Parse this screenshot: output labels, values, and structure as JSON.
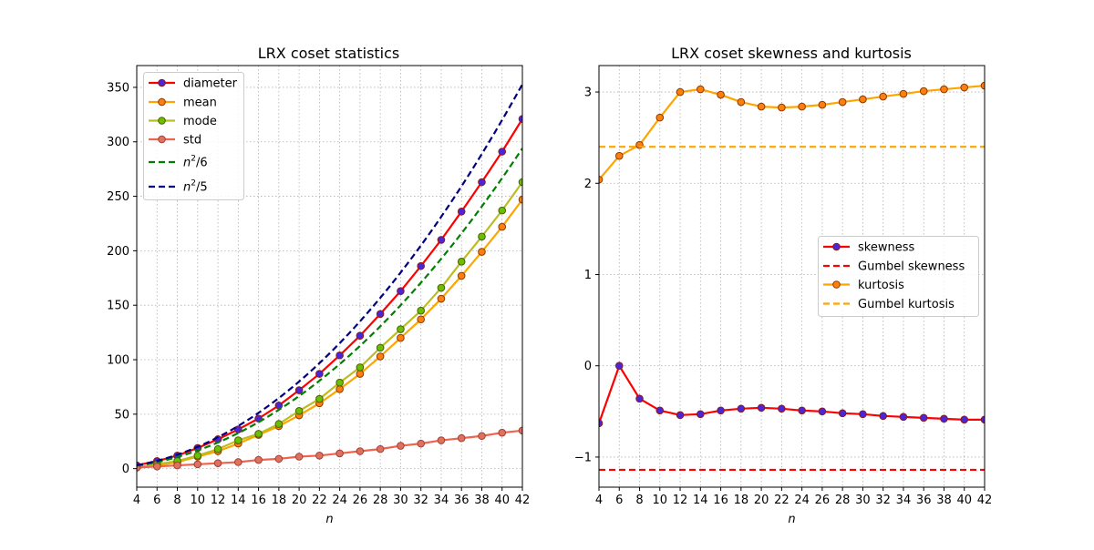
{
  "chart_data": [
    {
      "type": "line",
      "title": "LRX coset statistics",
      "xlabel": "n",
      "ylabel": "",
      "xlim": [
        4,
        42
      ],
      "ylim": [
        -17,
        370
      ],
      "xticks": [
        4,
        6,
        8,
        10,
        12,
        14,
        16,
        18,
        20,
        22,
        24,
        26,
        28,
        30,
        32,
        34,
        36,
        38,
        40,
        42
      ],
      "yticks": [
        0,
        50,
        100,
        150,
        200,
        250,
        300,
        350
      ],
      "grid": true,
      "legend_position": "upper-left",
      "x": [
        4,
        6,
        8,
        10,
        12,
        14,
        16,
        18,
        20,
        22,
        24,
        26,
        28,
        30,
        32,
        34,
        36,
        38,
        40,
        42
      ],
      "series": [
        {
          "name": "diameter",
          "label": "diameter",
          "color": "#ff0000",
          "marker_face": "#4b25d8",
          "marker_edge": "#8b1a1a",
          "style": "line-marker",
          "values": [
            3,
            7,
            12,
            19,
            27,
            36,
            46,
            58,
            72,
            87,
            104,
            122,
            142,
            163,
            186,
            210,
            236,
            263,
            291,
            321
          ]
        },
        {
          "name": "mean",
          "label": "mean",
          "color": "#ffa500",
          "marker_face": "#ff7f0e",
          "marker_edge": "#8b3a00",
          "style": "line-marker",
          "values": [
            1,
            3,
            6,
            11,
            16,
            23,
            31,
            39,
            49,
            60,
            73,
            87,
            103,
            120,
            137,
            156,
            177,
            199,
            222,
            247
          ]
        },
        {
          "name": "mode",
          "label": "mode",
          "color": "#bcbd22",
          "marker_face": "#6abf00",
          "marker_edge": "#4a5e00",
          "style": "line-marker",
          "values": [
            1,
            4,
            7,
            12,
            18,
            26,
            32,
            41,
            53,
            64,
            79,
            93,
            111,
            128,
            145,
            166,
            190,
            213,
            237,
            263
          ]
        },
        {
          "name": "std",
          "label": "std",
          "color": "#f0644f",
          "marker_face": "#e07060",
          "marker_edge": "#a04030",
          "style": "line-marker",
          "values": [
            1,
            2,
            3,
            4,
            5,
            6,
            8,
            9,
            11,
            12,
            14,
            16,
            18,
            21,
            23,
            26,
            28,
            30,
            33,
            35
          ]
        },
        {
          "name": "n2_over_6",
          "label_base": "n",
          "label_sup": "2",
          "label_rest": "/6",
          "color": "#008000",
          "style": "dashed",
          "formula": "n^2/6"
        },
        {
          "name": "n2_over_5",
          "label_base": "n",
          "label_sup": "2",
          "label_rest": "/5",
          "color": "#000080",
          "style": "dashed",
          "formula": "n^2/5"
        }
      ]
    },
    {
      "type": "line",
      "title": "LRX coset skewness and kurtosis",
      "xlabel": "n",
      "ylabel": "",
      "xlim": [
        4,
        42
      ],
      "ylim": [
        -1.33,
        3.29
      ],
      "xticks": [
        4,
        6,
        8,
        10,
        12,
        14,
        16,
        18,
        20,
        22,
        24,
        26,
        28,
        30,
        32,
        34,
        36,
        38,
        40,
        42
      ],
      "yticks": [
        -1,
        0,
        1,
        2,
        3
      ],
      "grid": true,
      "legend_position": "center-right",
      "x": [
        4,
        6,
        8,
        10,
        12,
        14,
        16,
        18,
        20,
        22,
        24,
        26,
        28,
        30,
        32,
        34,
        36,
        38,
        40,
        42
      ],
      "series": [
        {
          "name": "skewness",
          "label": "skewness",
          "color": "#ff0000",
          "marker_face": "#4b25d8",
          "marker_edge": "#8b1a1a",
          "style": "line-marker",
          "values": [
            -0.63,
            0.0,
            -0.36,
            -0.49,
            -0.54,
            -0.53,
            -0.49,
            -0.47,
            -0.46,
            -0.47,
            -0.49,
            -0.5,
            -0.52,
            -0.53,
            -0.55,
            -0.56,
            -0.57,
            -0.58,
            -0.59,
            -0.59
          ]
        },
        {
          "name": "gumbel_skewness",
          "label": "Gumbel skewness",
          "color": "#ff0000",
          "style": "dashed",
          "value": -1.14
        },
        {
          "name": "kurtosis",
          "label": "kurtosis",
          "color": "#ffa500",
          "marker_face": "#ff7f0e",
          "marker_edge": "#8b3a00",
          "style": "line-marker",
          "values": [
            2.04,
            2.3,
            2.42,
            2.72,
            3.0,
            3.03,
            2.97,
            2.89,
            2.84,
            2.83,
            2.84,
            2.86,
            2.89,
            2.92,
            2.95,
            2.98,
            3.01,
            3.03,
            3.05,
            3.07
          ]
        },
        {
          "name": "gumbel_kurtosis",
          "label": "Gumbel kurtosis",
          "color": "#ffa500",
          "style": "dashed",
          "value": 2.4
        }
      ]
    }
  ]
}
